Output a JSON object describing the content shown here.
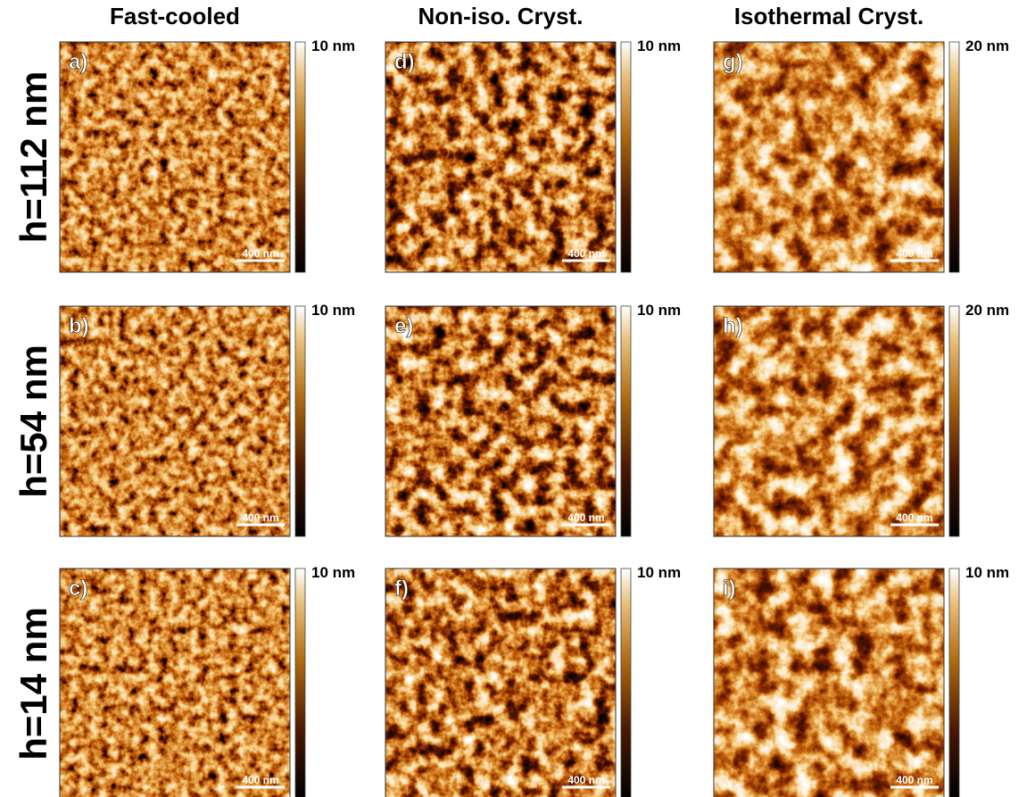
{
  "columns": [
    "Fast-cooled",
    "Non-iso. Cryst.",
    "Isothermal Cryst."
  ],
  "rows": [
    "h=112 nm",
    "h=54 nm",
    "h=14 nm"
  ],
  "panels": [
    [
      {
        "label": "a)",
        "scale_bar": "400 nm",
        "colorbar_max": "10 nm"
      },
      {
        "label": "d)",
        "scale_bar": "400 nm",
        "colorbar_max": "10 nm"
      },
      {
        "label": "g)",
        "scale_bar": "400 nm",
        "colorbar_max": "20 nm"
      }
    ],
    [
      {
        "label": "b)",
        "scale_bar": "400 nm",
        "colorbar_max": "10 nm"
      },
      {
        "label": "e)",
        "scale_bar": "400 nm",
        "colorbar_max": "10 nm"
      },
      {
        "label": "h)",
        "scale_bar": "400 nm",
        "colorbar_max": "20 nm"
      }
    ],
    [
      {
        "label": "c)",
        "scale_bar": "400 nm",
        "colorbar_max": "10 nm"
      },
      {
        "label": "f)",
        "scale_bar": "400 nm",
        "colorbar_max": "10 nm"
      },
      {
        "label": "i)",
        "scale_bar": "400 nm",
        "colorbar_max": "10 nm"
      }
    ]
  ]
}
